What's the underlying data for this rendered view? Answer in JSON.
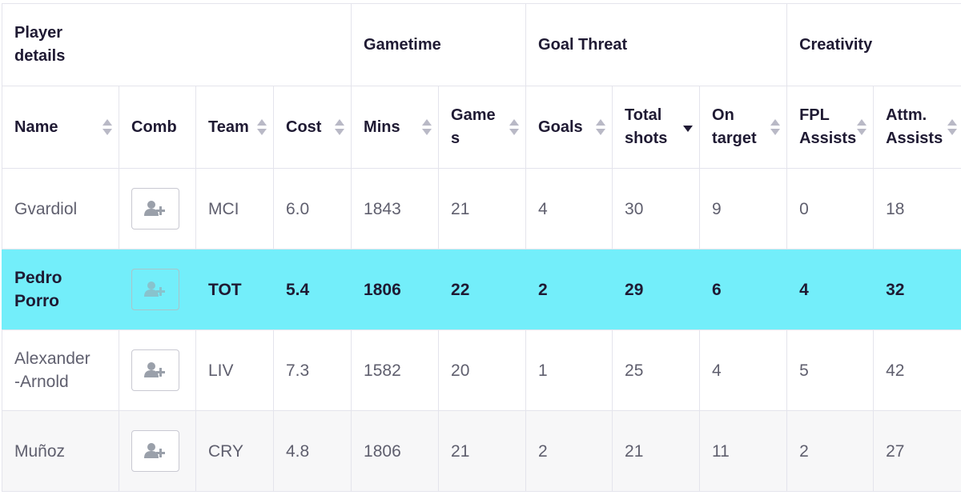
{
  "groups": {
    "player_details": "Player\ndetails",
    "gametime": "Gametime",
    "goal_threat": "Goal Threat",
    "creativity": "Creativity"
  },
  "columns": {
    "name": "Name",
    "comb": "Comb",
    "team": "Team",
    "cost": "Cost",
    "mins": "Mins",
    "games": "Game\ns",
    "goals": "Goals",
    "total_shots": "Total\nshots",
    "on_target": "On\ntarget",
    "fpl_assists": "FPL\nAssists",
    "attm_assists": "Attm.\nAssists"
  },
  "sort": {
    "column": "total_shots",
    "direction": "desc"
  },
  "icons": {
    "add_player": "add-user-icon"
  },
  "colors": {
    "highlight": "#73eefa",
    "text": "#1f1a33",
    "muted_text": "#5f5f6e"
  },
  "rows": [
    {
      "name": "Gvardiol",
      "team": "MCI",
      "cost": "6.0",
      "mins": "1843",
      "games": "21",
      "goals": "4",
      "total_shots": "30",
      "on_target": "9",
      "fpl_assists": "0",
      "attm_assists": "18"
    },
    {
      "name": "Pedro\nPorro",
      "team": "TOT",
      "cost": "5.4",
      "mins": "1806",
      "games": "22",
      "goals": "2",
      "total_shots": "29",
      "on_target": "6",
      "fpl_assists": "4",
      "attm_assists": "32"
    },
    {
      "name": "Alexander\n-Arnold",
      "team": "LIV",
      "cost": "7.3",
      "mins": "1582",
      "games": "20",
      "goals": "1",
      "total_shots": "25",
      "on_target": "4",
      "fpl_assists": "5",
      "attm_assists": "42"
    },
    {
      "name": "Muñoz",
      "team": "CRY",
      "cost": "4.8",
      "mins": "1806",
      "games": "21",
      "goals": "2",
      "total_shots": "21",
      "on_target": "11",
      "fpl_assists": "2",
      "attm_assists": "27"
    }
  ]
}
